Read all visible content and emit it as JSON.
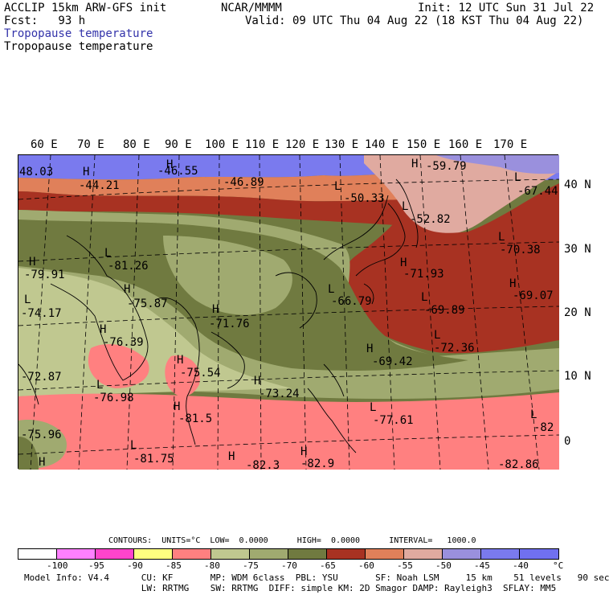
{
  "header": {
    "model": "ACCLIP 15km ARW-GFS init",
    "center": "NCAR/MMMM",
    "init": "Init: 12 UTC Sun 31 Jul 22",
    "fcst": "Fcst:   93 h",
    "valid": "Valid: 09 UTC Thu 04 Aug 22 (18 KST Thu 04 Aug 22)",
    "field1": "Tropopause temperature",
    "field2": "Tropopause temperature"
  },
  "map": {
    "lon_labels": [
      "60 E",
      "70 E",
      "80 E",
      "90 E",
      "100 E",
      "110 E",
      "120 E",
      "130 E",
      "140 E",
      "150 E",
      "160 E",
      "170 E"
    ],
    "lat_labels": [
      "40 N",
      "30 N",
      "20 N",
      "10 N",
      "0"
    ],
    "contour_labels": [
      "48.03",
      "-44.21",
      "-46.55",
      "-46.89",
      "-50.33",
      "-59.79",
      "-52.82",
      "-67.44",
      "-81.26",
      "-79.91",
      "-75.87",
      "-74.17",
      "-71.76",
      "-66.79",
      "-71.93",
      "-70.38",
      "-69.07",
      "-69.89",
      "-76.39",
      "-72.36",
      "-69.42",
      "-75.54",
      "-72.87",
      "-76.98",
      "-73.24",
      "-81.5",
      "-77.61",
      "-82",
      "-75.96",
      "-81.75",
      "-82.9",
      "-82.86",
      "-82.3"
    ],
    "markers": [
      "H",
      "H",
      "L",
      "H",
      "L",
      "L",
      "L",
      "H",
      "H",
      "L",
      "H",
      "L",
      "H",
      "L",
      "H",
      "L",
      "H",
      "H",
      "L",
      "H",
      "H",
      "L",
      "H",
      "L",
      "L",
      "H",
      "H",
      "H",
      "L"
    ]
  },
  "legend": {
    "info": "CONTOURS:  UNITS=°C  LOW=  0.0000      HIGH=  0.0000      INTERVAL=   1000.0",
    "colors": [
      "#ffffff",
      "#ff80ff",
      "#ff44cc",
      "#ffff80",
      "#ff8080",
      "#c0c890",
      "#a0aa70",
      "#707a40",
      "#a83222",
      "#e0805a",
      "#e0aaa0",
      "#9a90dd",
      "#7a7aee",
      "#7070f0"
    ],
    "ticks": [
      "-100",
      "-95",
      "-90",
      "-85",
      "-80",
      "-75",
      "-70",
      "-65",
      "-60",
      "-55",
      "-50",
      "-45",
      "-40",
      "°C"
    ]
  },
  "footer": {
    "line1": "Model Info: V4.4      CU: KF       MP: WDM 6class  PBL: YSU       SF: Noah LSM     15 km    51 levels   90 sec",
    "line2": "                      LW: RRTMG    SW: RRTMG  DIFF: simple KM: 2D Smagor DAMP: Rayleigh3  SFLAY: MM5"
  }
}
